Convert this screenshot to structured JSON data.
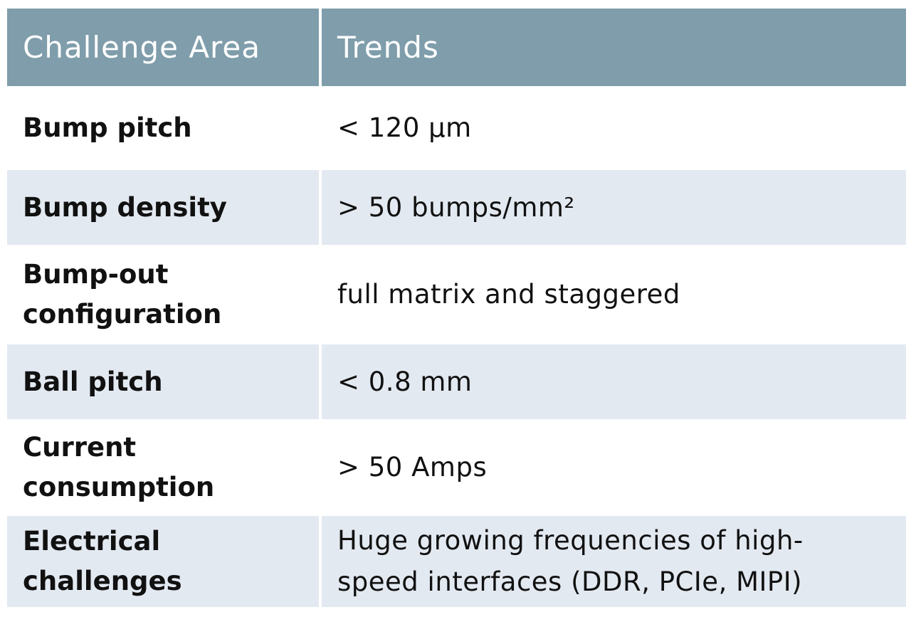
{
  "table": {
    "headers": [
      "Challenge Area",
      "Trends"
    ],
    "rows": [
      {
        "area": "Bump pitch",
        "trend": "< 120 µm"
      },
      {
        "area": "Bump density",
        "trend": "> 50 bumps/mm²"
      },
      {
        "area": "Bump-out configuration",
        "trend": "full matrix and staggered"
      },
      {
        "area": "Ball pitch",
        "trend": "< 0.8 mm"
      },
      {
        "area": "Current consumption",
        "trend": "> 50 Amps"
      },
      {
        "area": "Electrical challenges",
        "trend": "Huge growing frequencies of high-speed interfaces (DDR, PCIe, MIPI)"
      }
    ]
  },
  "colors": {
    "header_bg": "#7f9dab",
    "row_alt_bg": "#e3e9f1",
    "header_text": "#ffffff"
  }
}
